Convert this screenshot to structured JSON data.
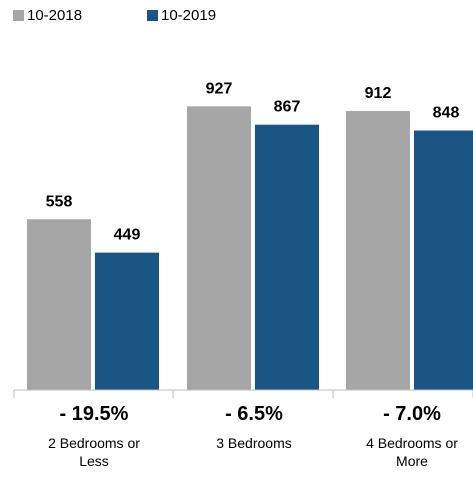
{
  "chart_data": {
    "type": "bar",
    "title": "",
    "xlabel": "",
    "ylabel": "",
    "ylim": [
      0,
      1000
    ],
    "grid": false,
    "legend_position": "top-left",
    "categories": [
      "2 Bedrooms or Less",
      "3 Bedrooms",
      "4 Bedrooms or More"
    ],
    "category_lines": [
      [
        "2 Bedrooms or",
        "Less"
      ],
      [
        "3 Bedrooms"
      ],
      [
        "4 Bedrooms or",
        "More"
      ]
    ],
    "series": [
      {
        "name": "10-2018",
        "values": [
          558,
          927,
          912
        ],
        "color": "#a6a6a6"
      },
      {
        "name": "10-2019",
        "values": [
          449,
          867,
          848
        ],
        "color": "#1a5584"
      }
    ],
    "data_labels": [
      [
        "558",
        "927",
        "912"
      ],
      [
        "449",
        "867",
        "848"
      ]
    ],
    "change_labels": [
      "- 19.5%",
      "- 6.5%",
      "- 7.0%"
    ],
    "colors": {
      "axis": "#bfbfbf",
      "text": "#000000"
    }
  }
}
